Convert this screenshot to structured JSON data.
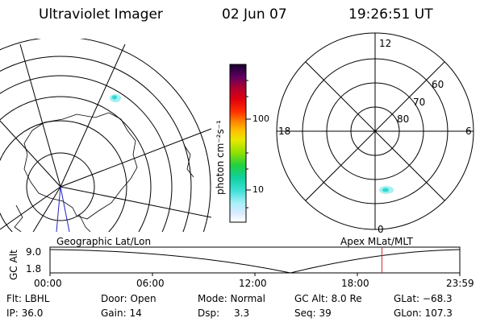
{
  "header": {
    "title": "Ultraviolet Imager",
    "date": "02 Jun 07",
    "time": "19:26:51 UT"
  },
  "colorbar": {
    "label": "photon cm⁻²s⁻¹",
    "tick_high": "100",
    "tick_low": "10",
    "colors": [
      "#ffffff",
      "#e0e0ff",
      "#b0f0ff",
      "#40e0e0",
      "#00c8a0",
      "#00d040",
      "#a0e000",
      "#e0e000",
      "#ffc000",
      "#ff8000",
      "#ff3000",
      "#e00000",
      "#b00020",
      "#600060",
      "#200040"
    ]
  },
  "polar": {
    "mlt_12": "12",
    "mlt_18": "18",
    "mlt_6": "6",
    "mlt_0": "0",
    "lat_60": "60",
    "lat_70": "70",
    "lat_80": "80"
  },
  "labels": {
    "geo": "Geographic Lat/Lon",
    "apex": "Apex MLat/MLT"
  },
  "orbit": {
    "ylabel": "GC Alt",
    "ytick_top": "9.0",
    "ytick_bottom": "1.8",
    "xticks": [
      "00:00",
      "06:00",
      "12:00",
      "18:00",
      "23:59"
    ],
    "current_time_fraction": 0.81
  },
  "info": {
    "flt": "Flt: LBHL",
    "ip": "IP: 36.0",
    "door": "Door: Open",
    "gain": "Gain: 14",
    "mode": "Mode: Normal",
    "dsp_label": "Dsp:",
    "dsp_value": "3.3",
    "gcalt": "GC Alt: 8.0 Re",
    "seq": "Seq: 39",
    "glat": "GLat: −68.3",
    "glon": "GLon: 107.3"
  }
}
